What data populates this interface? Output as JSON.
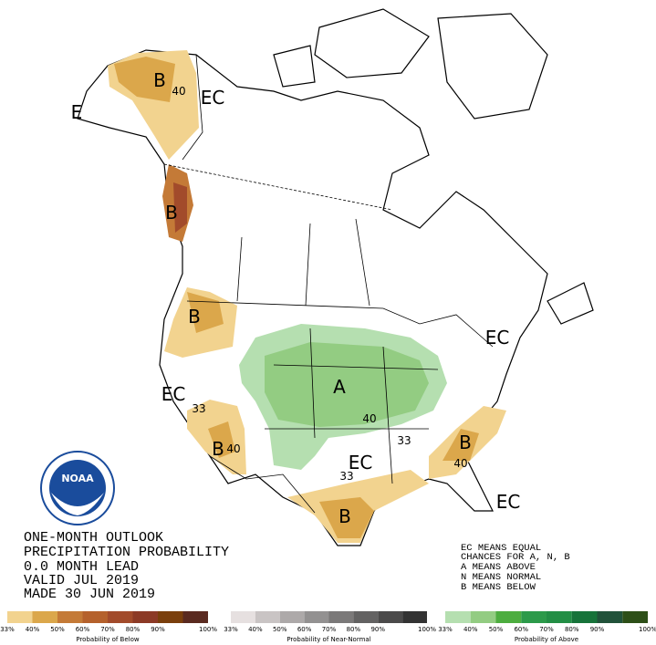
{
  "map_labels": [
    "B",
    "40",
    "EC",
    "E",
    "B",
    "B",
    "EC",
    "33",
    "B",
    "40",
    "A",
    "40",
    "33",
    "EC",
    "33",
    "B",
    "40",
    "EC",
    "EC",
    "B"
  ],
  "logo": "NOAA",
  "title_block": [
    "ONE-MONTH OUTLOOK",
    "PRECIPITATION PROBABILITY",
    "0.0 MONTH LEAD",
    "VALID JUL 2019",
    "MADE 30 JUN 2019"
  ],
  "key": [
    "EC MEANS EQUAL",
    "CHANCES FOR A, N, B",
    "A MEANS ABOVE",
    "N MEANS NORMAL",
    "B MEANS BELOW"
  ],
  "legend": [
    {
      "title": "Probability of Below",
      "labels": [
        "33%",
        "40%",
        "50%",
        "60%",
        "70%",
        "80%",
        "90%",
        "100%"
      ]
    },
    {
      "title": "Probability of Near-Normal",
      "labels": [
        "33%",
        "40%",
        "50%",
        "60%",
        "70%",
        "80%",
        "90%",
        "100%"
      ]
    },
    {
      "title": "Probability of Above",
      "labels": [
        "33%",
        "40%",
        "50%",
        "60%",
        "70%",
        "80%",
        "90%",
        "100%"
      ]
    }
  ]
}
